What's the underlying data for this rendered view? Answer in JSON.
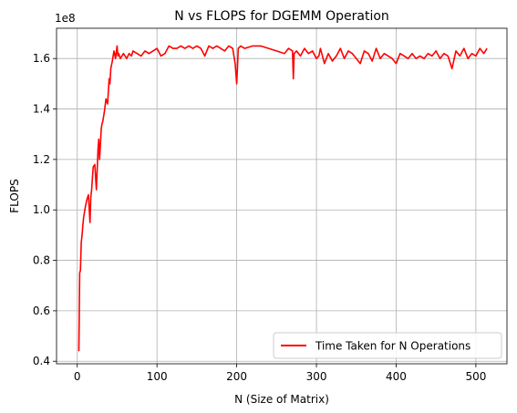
{
  "chart_data": {
    "type": "line",
    "title": "N vs FLOPS for DGEMM Operation",
    "xlabel": "N (Size of Matrix)",
    "ylabel": "FLOPS",
    "y_offset_label": "1e8",
    "xlim": [
      -26,
      539
    ],
    "ylim": [
      0.39,
      1.72
    ],
    "y_multiplier": 100000000,
    "xticks": [
      0,
      100,
      200,
      300,
      400,
      500
    ],
    "xtick_labels": [
      "0",
      "100",
      "200",
      "300",
      "400",
      "500"
    ],
    "yticks": [
      0.4,
      0.6,
      0.8,
      1.0,
      1.2,
      1.4,
      1.6
    ],
    "ytick_labels": [
      "0.4",
      "0.6",
      "0.8",
      "1.0",
      "1.2",
      "1.4",
      "1.6"
    ],
    "grid": true,
    "legend_position": "lower right",
    "series": [
      {
        "name": "Time Taken for N Operations",
        "color": "#ff0000",
        "x": [
          2,
          3,
          4,
          5,
          6,
          7,
          8,
          10,
          12,
          14,
          16,
          17,
          18,
          20,
          22,
          24,
          26,
          27,
          28,
          30,
          31,
          32,
          34,
          36,
          38,
          40,
          41,
          42,
          44,
          45,
          46,
          48,
          50,
          51,
          52,
          54,
          56,
          58,
          60,
          62,
          65,
          68,
          70,
          75,
          80,
          85,
          90,
          95,
          100,
          105,
          110,
          115,
          120,
          125,
          130,
          135,
          140,
          145,
          150,
          155,
          160,
          165,
          170,
          175,
          180,
          185,
          190,
          195,
          198,
          200,
          201,
          202,
          205,
          210,
          220,
          230,
          240,
          250,
          260,
          265,
          270,
          271,
          272,
          275,
          280,
          285,
          290,
          295,
          300,
          303,
          305,
          310,
          315,
          320,
          325,
          330,
          335,
          340,
          345,
          350,
          355,
          360,
          365,
          370,
          375,
          380,
          385,
          390,
          395,
          400,
          405,
          410,
          415,
          420,
          425,
          430,
          435,
          440,
          445,
          450,
          455,
          460,
          465,
          470,
          475,
          480,
          485,
          490,
          495,
          500,
          505,
          510,
          514
        ],
        "y": [
          0.44,
          0.75,
          0.76,
          0.87,
          0.9,
          0.94,
          0.97,
          1.01,
          1.04,
          1.06,
          0.95,
          1.05,
          1.08,
          1.17,
          1.18,
          1.08,
          1.24,
          1.28,
          1.2,
          1.32,
          1.34,
          1.35,
          1.39,
          1.44,
          1.42,
          1.52,
          1.5,
          1.56,
          1.59,
          1.61,
          1.63,
          1.6,
          1.65,
          1.61,
          1.62,
          1.6,
          1.61,
          1.62,
          1.61,
          1.6,
          1.62,
          1.61,
          1.63,
          1.62,
          1.61,
          1.63,
          1.62,
          1.63,
          1.64,
          1.61,
          1.62,
          1.65,
          1.64,
          1.64,
          1.65,
          1.64,
          1.65,
          1.64,
          1.65,
          1.64,
          1.61,
          1.65,
          1.64,
          1.65,
          1.64,
          1.63,
          1.65,
          1.64,
          1.58,
          1.5,
          1.57,
          1.64,
          1.65,
          1.64,
          1.65,
          1.65,
          1.64,
          1.63,
          1.62,
          1.64,
          1.63,
          1.52,
          1.62,
          1.63,
          1.61,
          1.64,
          1.62,
          1.63,
          1.6,
          1.61,
          1.64,
          1.58,
          1.62,
          1.59,
          1.61,
          1.64,
          1.6,
          1.63,
          1.62,
          1.6,
          1.58,
          1.63,
          1.62,
          1.59,
          1.64,
          1.6,
          1.62,
          1.61,
          1.6,
          1.58,
          1.62,
          1.61,
          1.6,
          1.62,
          1.6,
          1.61,
          1.6,
          1.62,
          1.61,
          1.63,
          1.6,
          1.62,
          1.61,
          1.56,
          1.63,
          1.61,
          1.64,
          1.6,
          1.62,
          1.61,
          1.64,
          1.62,
          1.64
        ]
      }
    ]
  }
}
